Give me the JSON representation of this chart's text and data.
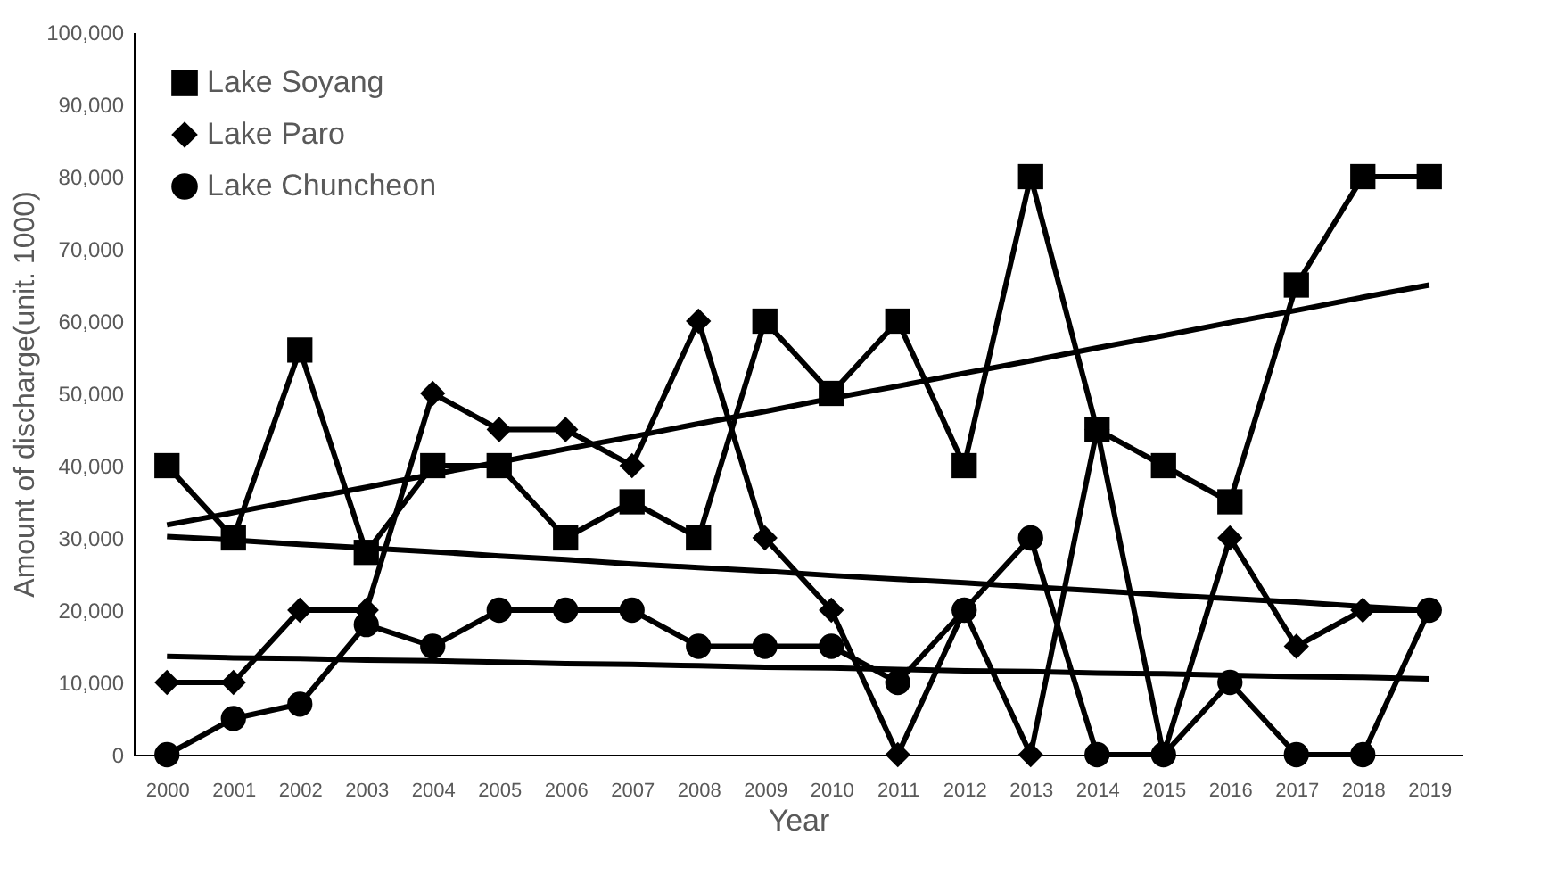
{
  "chart_data": {
    "type": "line",
    "xlabel": "Year",
    "ylabel": "Amount of discharge(unit. 1000)",
    "categories": [
      "2000",
      "2001",
      "2002",
      "2003",
      "2004",
      "2005",
      "2006",
      "2007",
      "2008",
      "2009",
      "2010",
      "2011",
      "2012",
      "2013",
      "2014",
      "2015",
      "2016",
      "2017",
      "2018",
      "2019"
    ],
    "ylim": [
      0,
      100000
    ],
    "yticks": [
      {
        "value": 0,
        "label": "0"
      },
      {
        "value": 10000,
        "label": "10,000"
      },
      {
        "value": 20000,
        "label": "20,000"
      },
      {
        "value": 30000,
        "label": "30,000"
      },
      {
        "value": 40000,
        "label": "40,000"
      },
      {
        "value": 50000,
        "label": "50,000"
      },
      {
        "value": 60000,
        "label": "60,000"
      },
      {
        "value": 70000,
        "label": "70,000"
      },
      {
        "value": 80000,
        "label": "80,000"
      },
      {
        "value": 90000,
        "label": "90,000"
      },
      {
        "value": 100000,
        "label": "100,000"
      }
    ],
    "grid": false,
    "legend": "top left",
    "series": [
      {
        "name": "Lake Soyang",
        "color": "#000000",
        "marker": "square",
        "values": [
          40000,
          30000,
          56000,
          28000,
          40000,
          40000,
          30000,
          35000,
          30000,
          60000,
          50000,
          60000,
          40000,
          80000,
          45000,
          40000,
          35000,
          65000,
          80000,
          80000
        ]
      },
      {
        "name": "Lake Paro",
        "color": "#000000",
        "marker": "diamond",
        "values": [
          10000,
          10000,
          20000,
          20000,
          50000,
          45000,
          45000,
          40000,
          60000,
          30000,
          20000,
          0,
          20000,
          0,
          45000,
          0,
          30000,
          15000,
          20000,
          20000
        ]
      },
      {
        "name": "Lake Chuncheon",
        "color": "#000000",
        "marker": "circle",
        "values": [
          0,
          5000,
          7000,
          18000,
          15000,
          20000,
          20000,
          20000,
          15000,
          15000,
          15000,
          10000,
          20000,
          30000,
          0,
          0,
          10000,
          0,
          0,
          20000
        ]
      },
      {
        "type": "line",
        "color": "#000000",
        "marker": "none",
        "values": [
          31800,
          33500,
          35300,
          37000,
          38800,
          40500,
          42300,
          44000,
          45800,
          47500,
          49300,
          51000,
          52800,
          54500,
          56300,
          58000,
          59800,
          61500,
          63300,
          65000
        ]
      },
      {
        "type": "line",
        "color": "#000000",
        "marker": "none",
        "values": [
          30200,
          29700,
          29100,
          28600,
          28100,
          27500,
          27000,
          26400,
          25900,
          25400,
          24800,
          24300,
          23800,
          23200,
          22700,
          22100,
          21600,
          21100,
          20500,
          20000
        ]
      },
      {
        "type": "line",
        "color": "#000000",
        "marker": "none",
        "values": [
          13600,
          13400,
          13300,
          13100,
          13000,
          12800,
          12600,
          12500,
          12300,
          12100,
          12000,
          11800,
          11600,
          11500,
          11300,
          11200,
          11000,
          10800,
          10700,
          10500
        ]
      }
    ]
  }
}
